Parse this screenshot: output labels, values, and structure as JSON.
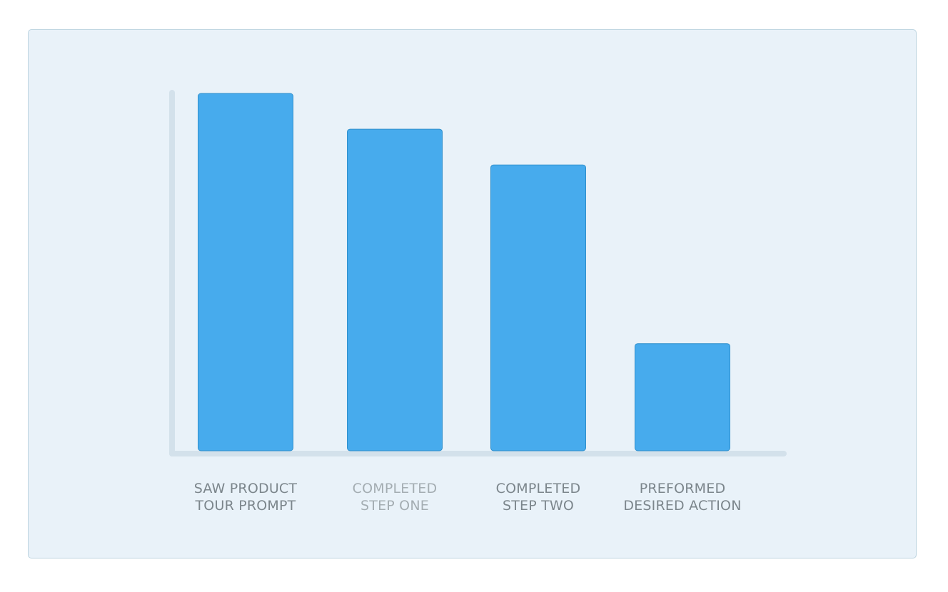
{
  "chart_data": {
    "type": "bar",
    "categories": [
      [
        "SAW PRODUCT",
        "TOUR PROMPT"
      ],
      [
        "COMPLETED",
        "STEP ONE"
      ],
      [
        "COMPLETED",
        "STEP TWO"
      ],
      [
        "PREFORMED",
        "DESIRED ACTION"
      ]
    ],
    "values": [
      100,
      90,
      80,
      30
    ],
    "ylim": [
      0,
      100
    ],
    "title": "",
    "xlabel": "",
    "ylabel": "",
    "grid": false,
    "legend": "none",
    "colors": {
      "bar": "#47abed",
      "bar_border": "#2f8fcc",
      "axis": "#d3e1eb",
      "label": "#7c868c",
      "label_muted": "#a4adb2",
      "panel_bg": "#e9f2f9"
    },
    "muted_category_index": 1
  }
}
